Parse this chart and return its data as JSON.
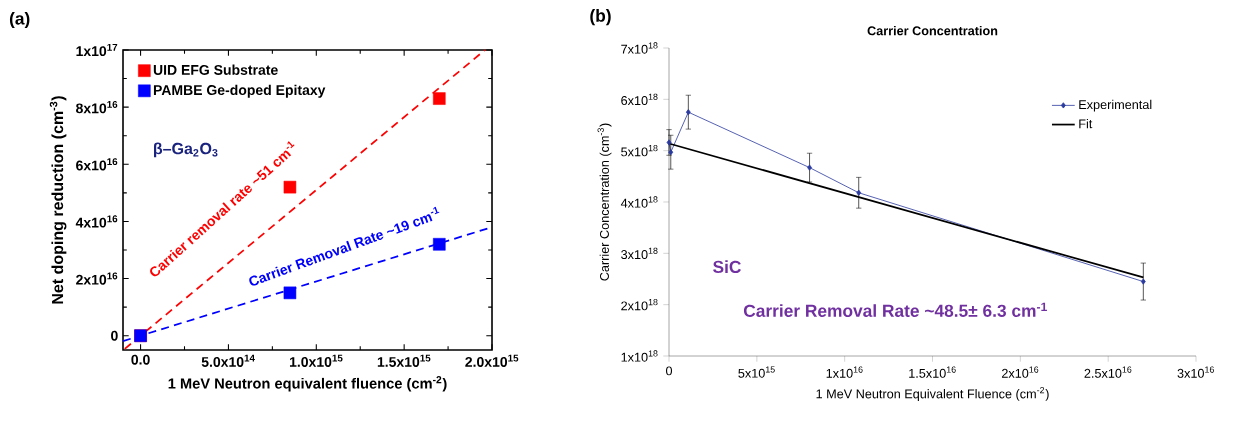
{
  "chart_data": [
    {
      "type": "scatter",
      "xlabel": "1 MeV Neutron equivalent fluence (cm$^{-2}$)",
      "ylabel": "Net doping reduction (cm$^{-3}$)",
      "annotations": [
        "(a)",
        "β–Ga$_{2}$O$_{3}$",
        "Carrier removal rate ~51 cm$^{-1}$",
        "Carrier Removal Rate ~19 cm$^{-1}$"
      ],
      "xlim": [
        -100000000000000.0,
        2000000000000000.0
      ],
      "ylim": [
        -5000000000000000.0,
        1e+17
      ],
      "xticks": [
        {
          "value": 0,
          "label": "0.0"
        },
        {
          "value": 500000000000000.0,
          "label": "5.0x10$^{14}$"
        },
        {
          "value": 1000000000000000.0,
          "label": "1.0x10$^{15}$"
        },
        {
          "value": 1500000000000000.0,
          "label": "1.5x10$^{15}$"
        },
        {
          "value": 2000000000000000.0,
          "label": "2.0x10$^{15}$"
        }
      ],
      "yticks": [
        {
          "value": 0,
          "label": "0"
        },
        {
          "value": 2e+16,
          "label": "2x10$^{16}$"
        },
        {
          "value": 4e+16,
          "label": "4x10$^{16}$"
        },
        {
          "value": 6e+16,
          "label": "6x10$^{16}$"
        },
        {
          "value": 8e+16,
          "label": "8x10$^{16}$"
        },
        {
          "value": 1e+17,
          "label": "1x10$^{17}$"
        }
      ],
      "legend": "top left",
      "marker": "square",
      "series": [
        {
          "name": "UID EFG Substrate",
          "color": "#ff0000",
          "x": [
            0,
            850000000000000.0,
            1700000000000000.0
          ],
          "values": [
            0,
            5.2e+16,
            8.3e+16
          ]
        },
        {
          "name": "PAMBE Ge-doped Epitaxy",
          "color": "#0000ff",
          "x": [
            0,
            850000000000000.0,
            1700000000000000.0
          ],
          "values": [
            0,
            1.5e+16,
            3.2e+16
          ]
        },
        {
          "type": "line",
          "color": "#ff0000",
          "line_style": "dashed",
          "marker": "none",
          "x": [
            -90000000000000.0,
            1960000000000000.0
          ],
          "values": [
            -4600000000000000.0,
            1e+17
          ]
        },
        {
          "type": "line",
          "color": "#0000ff",
          "line_style": "dashed",
          "marker": "none",
          "x": [
            -100000000000000.0,
            2000000000000000.0
          ],
          "values": [
            -1900000000000000.0,
            3.8e+16
          ]
        }
      ]
    },
    {
      "type": "line",
      "title": "Carrier Concentration",
      "xlabel": "1 MeV Neutron Equivalent Fluence (cm$^{-2}$)",
      "ylabel": "Carrier Concentration (cm$^{-3}$)",
      "annotations": [
        "(b)",
        "SiC",
        "Carrier Removal Rate ~48.5± 6.3 cm$^{-1}$"
      ],
      "xlim": [
        0,
        3e+16
      ],
      "ylim": [
        1e+18,
        7e+18
      ],
      "xticks": [
        {
          "value": 0,
          "label": "0"
        },
        {
          "value": 5000000000000000.0,
          "label": "5x10$^{15}$"
        },
        {
          "value": 1e+16,
          "label": "1x10$^{16}$"
        },
        {
          "value": 1.5e+16,
          "label": "1.5x10$^{16}$"
        },
        {
          "value": 2e+16,
          "label": "2x10$^{16}$"
        },
        {
          "value": 2.5e+16,
          "label": "2.5x10$^{16}$"
        },
        {
          "value": 3e+16,
          "label": "3x10$^{16}$"
        }
      ],
      "yticks": [
        {
          "value": 1e+18,
          "label": "1x10$^{18}$"
        },
        {
          "value": 2e+18,
          "label": "2x10$^{18}$"
        },
        {
          "value": 3e+18,
          "label": "3x10$^{18}$"
        },
        {
          "value": 4e+18,
          "label": "4x10$^{18}$"
        },
        {
          "value": 5e+18,
          "label": "5x10$^{18}$"
        },
        {
          "value": 6e+18,
          "label": "6x10$^{18}$"
        },
        {
          "value": 7e+18,
          "label": "7x10$^{18}$"
        }
      ],
      "legend": "top right",
      "series": [
        {
          "name": "Experimental",
          "color": "#2b3a9e",
          "marker": "diamond",
          "x": [
            0,
            100000000000000.0,
            1100000000000000.0,
            8000000000000000.0,
            1.08e+16,
            2.7e+16
          ],
          "values": [
            5.16e+18,
            4.97e+18,
            5.75e+18,
            4.67e+18,
            4.18e+18,
            2.45e+18
          ],
          "errors": [
            2.5e+17,
            3.3e+17,
            3.3e+17,
            2.8e+17,
            3e+17,
            3.6e+17
          ]
        },
        {
          "name": "Fit",
          "color": "#000000",
          "marker": "none",
          "x": [
            0,
            2.7e+16
          ],
          "values": [
            5.14e+18,
            2.53e+18
          ]
        }
      ]
    }
  ]
}
